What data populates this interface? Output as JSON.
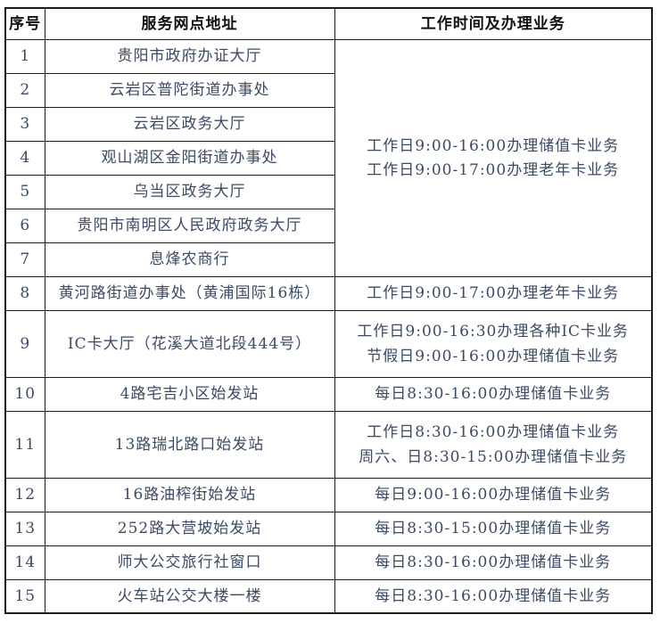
{
  "colors": {
    "background": "#ffffff",
    "border": "#1a1a1a",
    "header_text": "#111111",
    "body_text": "#3c4a63"
  },
  "table": {
    "headers": [
      "序号",
      "服务网点地址",
      "工作时间及办理业务"
    ],
    "merged_hours": [
      "工作日9:00-16:00办理储值卡业务",
      "工作日9:00-17:00办理老年卡业务"
    ],
    "rows": [
      {
        "no": "1",
        "address": "贵阳市政府办证大厅"
      },
      {
        "no": "2",
        "address": "云岩区普陀街道办事处"
      },
      {
        "no": "3",
        "address": "云岩区政务大厅"
      },
      {
        "no": "4",
        "address": "观山湖区金阳街道办事处"
      },
      {
        "no": "5",
        "address": "乌当区政务大厅"
      },
      {
        "no": "6",
        "address": "贵阳市南明区人民政府政务大厅"
      },
      {
        "no": "7",
        "address": "息烽农商行"
      },
      {
        "no": "8",
        "address": "黄河路街道办事处（黄浦国际16栋）",
        "hours": [
          "工作日9:00-17:00办理老年卡业务"
        ]
      },
      {
        "no": "9",
        "address": "IC卡大厅（花溪大道北段444号）",
        "hours": [
          "工作日9:00-16:30办理各种IC卡业务",
          "节假日9:00-16:00办理储值卡业务"
        ]
      },
      {
        "no": "10",
        "address": "4路宅吉小区始发站",
        "hours": [
          "每日8:30-16:00办理储值卡业务"
        ]
      },
      {
        "no": "11",
        "address": "13路瑞北路口始发站",
        "hours": [
          "工作日8:30-16:00办理储值卡业务",
          "周六、日8:30-15:00办理储值卡业务"
        ]
      },
      {
        "no": "12",
        "address": "16路油榨街始发站",
        "hours": [
          "每日9:00-16:00办理储值卡业务"
        ]
      },
      {
        "no": "13",
        "address": "252路大营坡始发站",
        "hours": [
          "每日8:30-15:00办理储值卡业务"
        ]
      },
      {
        "no": "14",
        "address": "师大公交旅行社窗口",
        "hours": [
          "每日8:30-16:00办理储值卡业务"
        ]
      },
      {
        "no": "15",
        "address": "火车站公交大楼一楼",
        "hours": [
          "每日8:30-16:00办理储值卡业务"
        ]
      }
    ]
  }
}
